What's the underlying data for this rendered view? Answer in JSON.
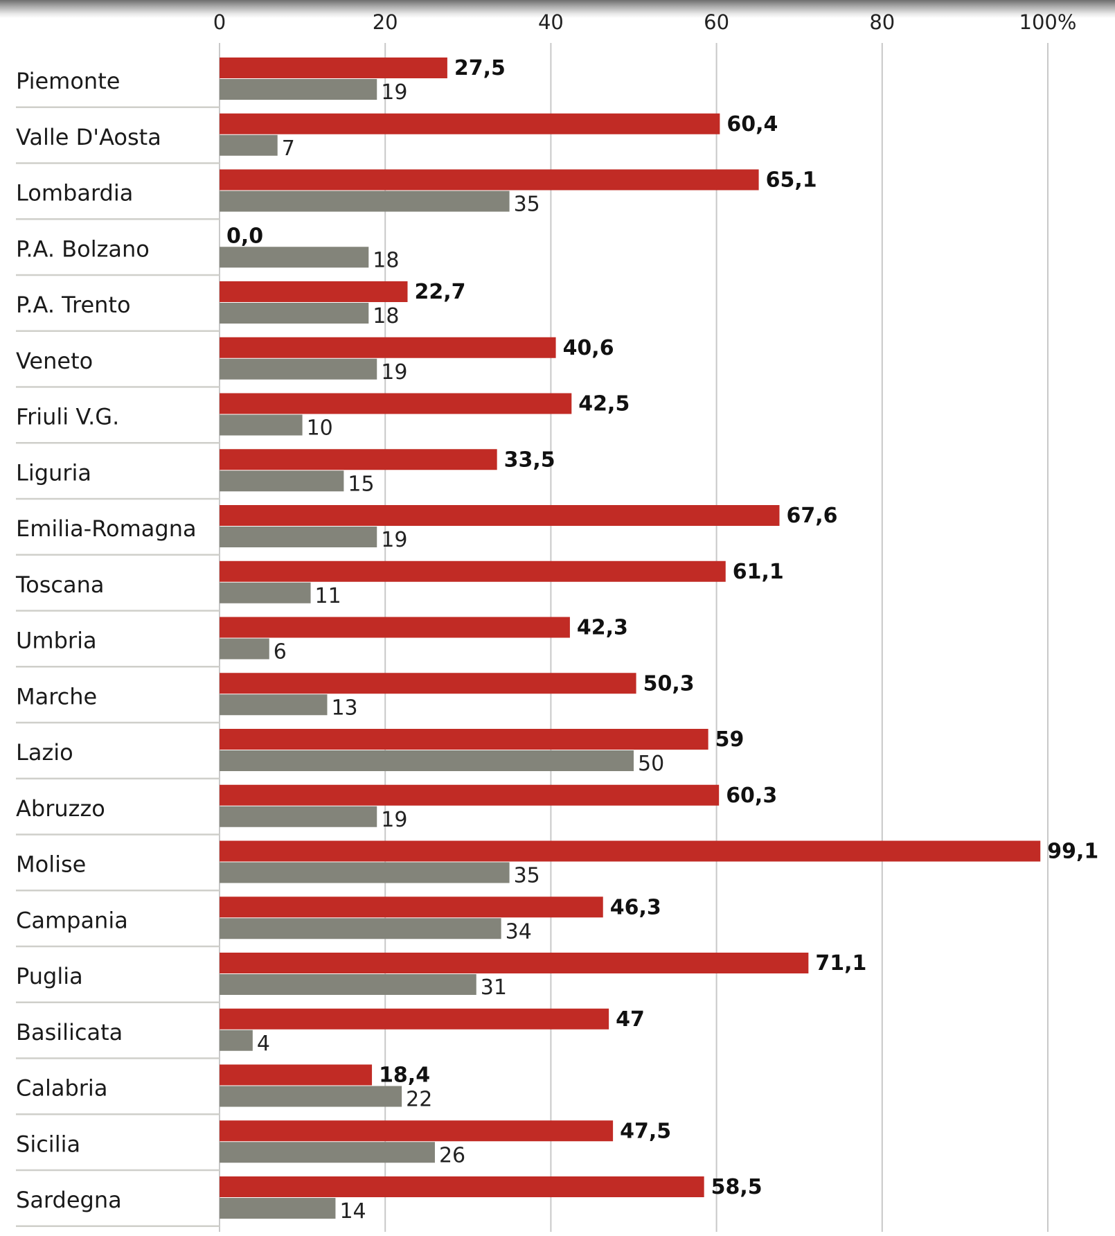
{
  "chart_data": {
    "type": "bar",
    "orientation": "horizontal",
    "title": "",
    "xlabel": "",
    "ylabel": "",
    "xlim": [
      0,
      100
    ],
    "x_ticks": [
      "0",
      "20",
      "40",
      "60",
      "80",
      "100%"
    ],
    "x_tick_values": [
      0,
      20,
      40,
      60,
      80,
      100
    ],
    "grid": true,
    "legend": null,
    "categories": [
      "Piemonte",
      "Valle D'Aosta",
      "Lombardia",
      "P.A. Bolzano",
      "P.A. Trento",
      "Veneto",
      "Friuli V.G.",
      "Liguria",
      "Emilia-Romagna",
      "Toscana",
      "Umbria",
      "Marche",
      "Lazio",
      "Abruzzo",
      "Molise",
      "Campania",
      "Puglia",
      "Basilicata",
      "Calabria",
      "Sicilia",
      "Sardegna"
    ],
    "series": [
      {
        "name": "series-red",
        "color": "#c12b25",
        "values": [
          27.5,
          60.4,
          65.1,
          0.0,
          22.7,
          40.6,
          42.5,
          33.5,
          67.6,
          61.1,
          42.3,
          50.3,
          59,
          60.3,
          99.1,
          46.3,
          71.1,
          47,
          18.4,
          47.5,
          58.5
        ],
        "labels": [
          "27,5",
          "60,4",
          "65,1",
          "0,0",
          "22,7",
          "40,6",
          "42,5",
          "33,5",
          "67,6",
          "61,1",
          "42,3",
          "50,3",
          "59",
          "60,3",
          "99,1",
          "46,3",
          "71,1",
          "47",
          "18,4",
          "47,5",
          "58,5"
        ]
      },
      {
        "name": "series-grey",
        "color": "#83847a",
        "values": [
          19,
          7,
          35,
          18,
          18,
          19,
          10,
          15,
          19,
          11,
          6,
          13,
          50,
          19,
          35,
          34,
          31,
          4,
          22,
          26,
          14
        ],
        "labels": [
          "19",
          "7",
          "35",
          "18",
          "18",
          "19",
          "10",
          "15",
          "19",
          "11",
          "6",
          "13",
          "50",
          "19",
          "35",
          "34",
          "31",
          "4",
          "22",
          "26",
          "14"
        ]
      }
    ]
  }
}
